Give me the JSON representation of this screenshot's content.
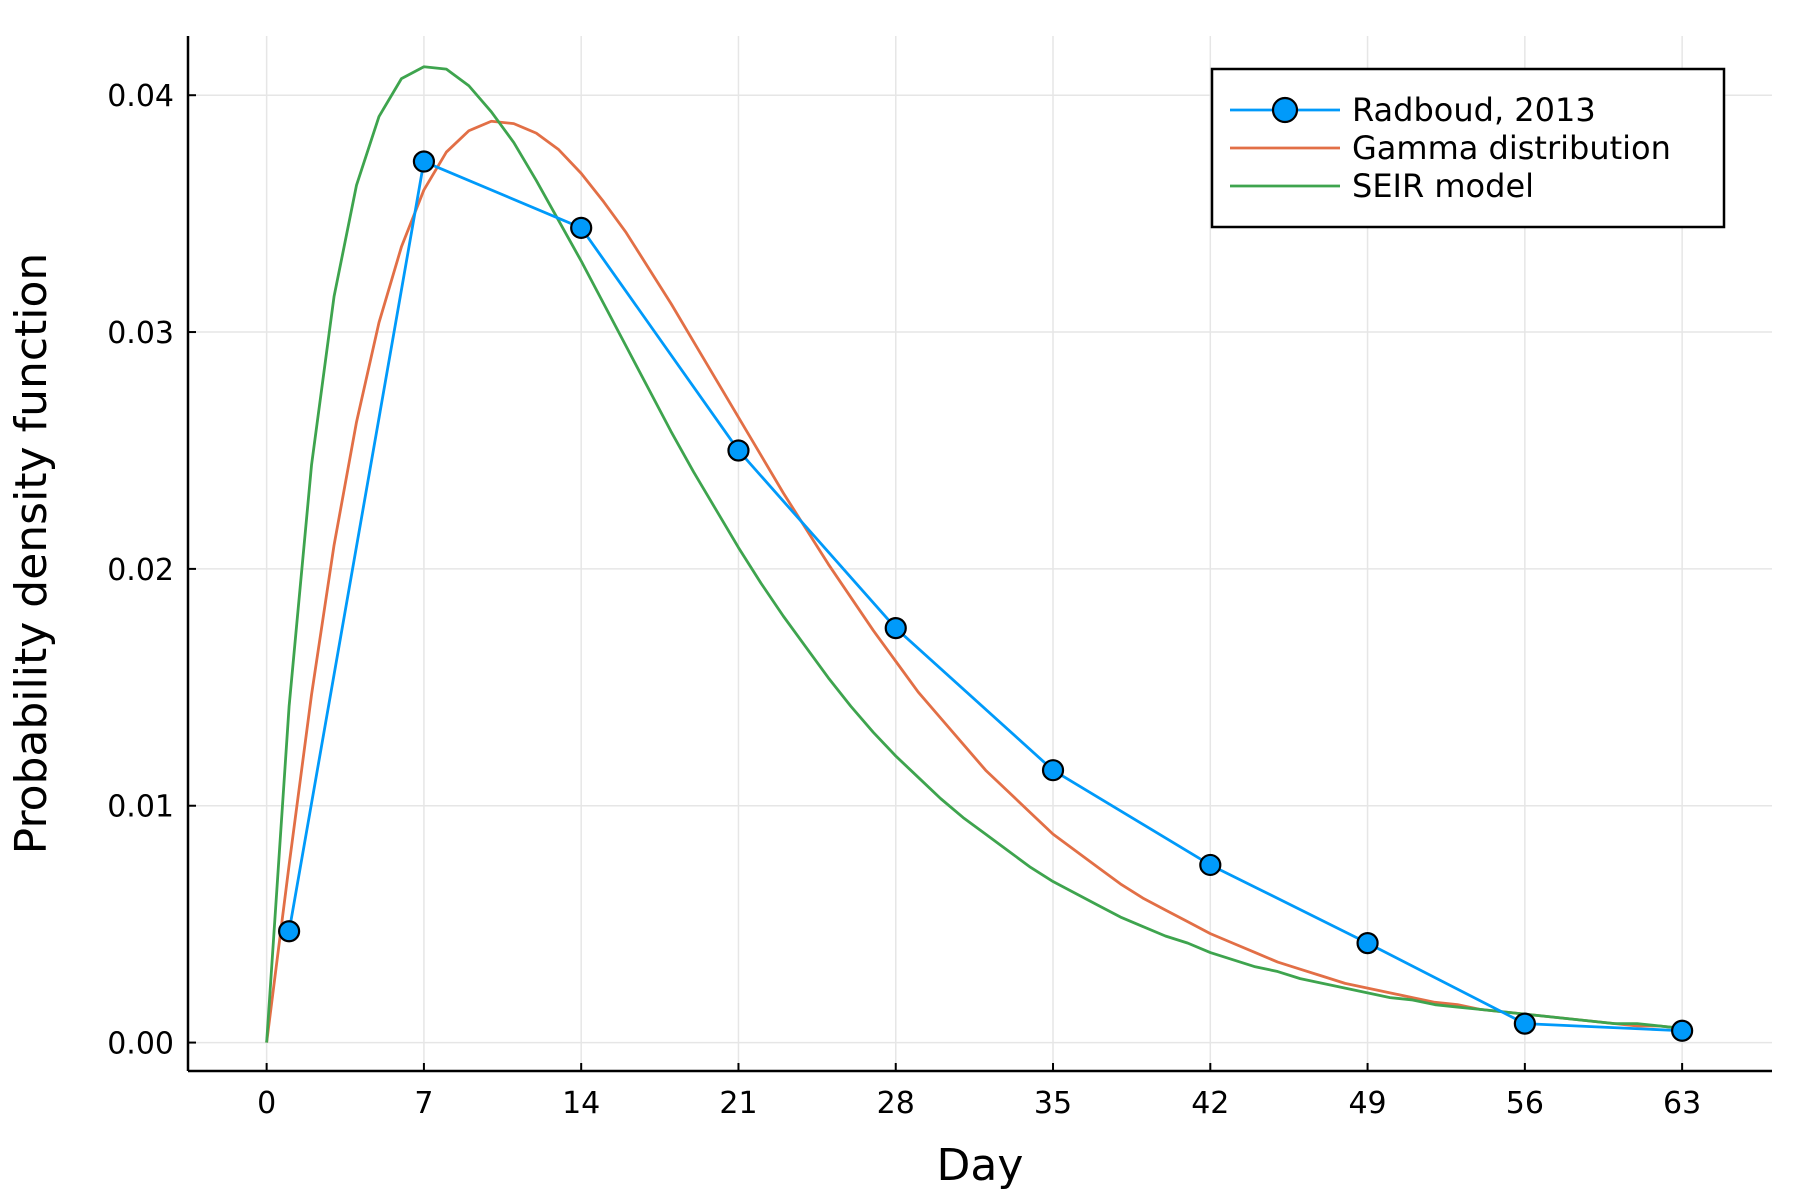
{
  "chart_data": {
    "type": "line",
    "title": "",
    "xlabel": "Day",
    "ylabel": "Probability density function",
    "xlim": [
      -3.5,
      67
    ],
    "ylim": [
      -0.0012,
      0.0425
    ],
    "x_ticks": [
      0,
      7,
      14,
      21,
      28,
      35,
      42,
      49,
      56,
      63
    ],
    "y_ticks": [
      0.0,
      0.01,
      0.02,
      0.03,
      0.04
    ],
    "x_tick_labels": [
      "0",
      "7",
      "14",
      "21",
      "28",
      "35",
      "42",
      "49",
      "56",
      "63"
    ],
    "y_tick_labels": [
      "0.00",
      "0.01",
      "0.02",
      "0.03",
      "0.04"
    ],
    "grid": true,
    "legend_position": "top-right",
    "series": [
      {
        "name": "Radboud, 2013",
        "color": "#009AFA",
        "marker": "circle",
        "x": [
          1,
          7,
          14,
          21,
          28,
          35,
          42,
          49,
          56,
          63
        ],
        "y": [
          0.0047,
          0.0372,
          0.0344,
          0.025,
          0.0175,
          0.0115,
          0.0075,
          0.0042,
          0.0008,
          0.0005
        ]
      },
      {
        "name": "Gamma distribution",
        "color": "#E26F46",
        "marker": "none",
        "x": [
          0,
          1,
          2,
          3,
          4,
          5,
          6,
          7,
          8,
          9,
          10,
          11,
          12,
          13,
          14,
          15,
          16,
          17,
          18,
          19,
          20,
          21,
          22,
          23,
          24,
          25,
          26,
          27,
          28,
          29,
          30,
          31,
          32,
          33,
          34,
          35,
          36,
          37,
          38,
          39,
          40,
          41,
          42,
          43,
          44,
          45,
          46,
          47,
          48,
          49,
          50,
          51,
          52,
          53,
          54,
          55,
          56,
          57,
          58,
          59,
          60,
          61,
          62,
          63
        ],
        "y": [
          0.0,
          0.0075,
          0.0147,
          0.021,
          0.0262,
          0.0304,
          0.0336,
          0.036,
          0.0376,
          0.0385,
          0.0389,
          0.0388,
          0.0384,
          0.0377,
          0.0367,
          0.0355,
          0.0342,
          0.0327,
          0.0312,
          0.0296,
          0.028,
          0.0264,
          0.0248,
          0.0232,
          0.0217,
          0.0202,
          0.0188,
          0.0174,
          0.0161,
          0.0148,
          0.0137,
          0.0126,
          0.0115,
          0.0106,
          0.0097,
          0.0088,
          0.0081,
          0.0074,
          0.0067,
          0.0061,
          0.0056,
          0.0051,
          0.0046,
          0.0042,
          0.0038,
          0.0034,
          0.0031,
          0.0028,
          0.0025,
          0.0023,
          0.0021,
          0.0019,
          0.0017,
          0.0016,
          0.0014,
          0.0013,
          0.0012,
          0.0011,
          0.001,
          0.0009,
          0.0008,
          0.0007,
          0.0007,
          0.0006
        ]
      },
      {
        "name": "SEIR model",
        "color": "#3EA44E",
        "marker": "none",
        "x": [
          0,
          1,
          2,
          3,
          4,
          5,
          6,
          7,
          8,
          9,
          10,
          11,
          12,
          13,
          14,
          15,
          16,
          17,
          18,
          19,
          20,
          21,
          22,
          23,
          24,
          25,
          26,
          27,
          28,
          29,
          30,
          31,
          32,
          33,
          34,
          35,
          36,
          37,
          38,
          39,
          40,
          41,
          42,
          43,
          44,
          45,
          46,
          47,
          48,
          49,
          50,
          51,
          52,
          53,
          54,
          55,
          56,
          57,
          58,
          59,
          60,
          61,
          62,
          63
        ],
        "y": [
          0.0,
          0.0142,
          0.0244,
          0.0315,
          0.0362,
          0.0391,
          0.0407,
          0.0412,
          0.0411,
          0.0404,
          0.0393,
          0.038,
          0.0364,
          0.0347,
          0.033,
          0.0312,
          0.0294,
          0.0276,
          0.0258,
          0.0241,
          0.0225,
          0.0209,
          0.0194,
          0.018,
          0.0167,
          0.0154,
          0.0142,
          0.0131,
          0.0121,
          0.0112,
          0.0103,
          0.0095,
          0.0088,
          0.0081,
          0.0074,
          0.0068,
          0.0063,
          0.0058,
          0.0053,
          0.0049,
          0.0045,
          0.0042,
          0.0038,
          0.0035,
          0.0032,
          0.003,
          0.0027,
          0.0025,
          0.0023,
          0.0021,
          0.0019,
          0.0018,
          0.0016,
          0.0015,
          0.0014,
          0.0013,
          0.0012,
          0.0011,
          0.001,
          0.0009,
          0.0008,
          0.0008,
          0.0007,
          0.0006
        ]
      }
    ]
  }
}
